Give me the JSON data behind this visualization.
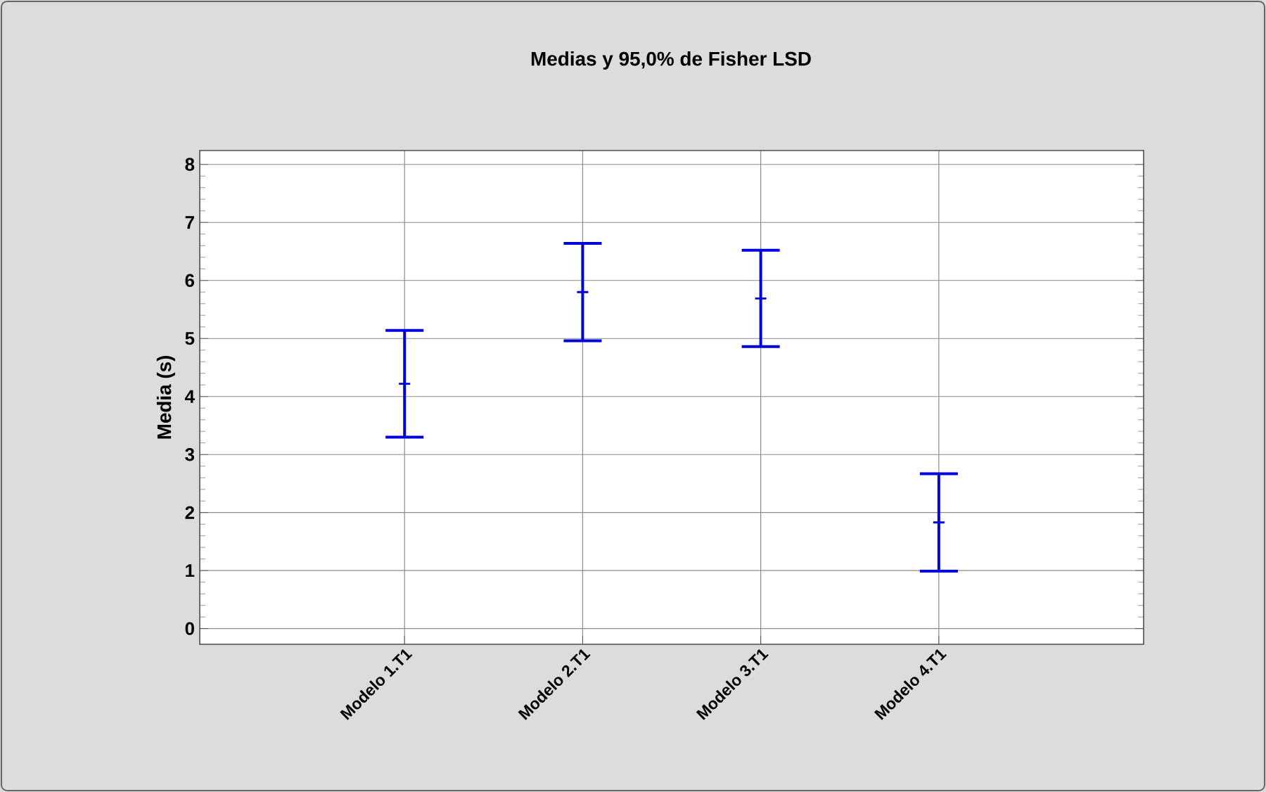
{
  "chart_data": {
    "type": "scatter",
    "title": "Medias y 95,0% de Fisher LSD",
    "ylabel": "Media (s)",
    "categories": [
      "Modelo 1.T1",
      "Modelo 2.T1",
      "Modelo 3.T1",
      "Modelo 4.T1"
    ],
    "series": [
      {
        "color": "#0000dd",
        "values": [
          4.22,
          5.8,
          5.69,
          1.83
        ],
        "errors": [
          0.92,
          0.84,
          0.83,
          0.84
        ]
      }
    ],
    "ylim": [
      -0.27,
      8.24
    ],
    "yticks": [
      0,
      1,
      2,
      3,
      4,
      5,
      6,
      7,
      8
    ],
    "grid": true,
    "marker": "cross"
  }
}
